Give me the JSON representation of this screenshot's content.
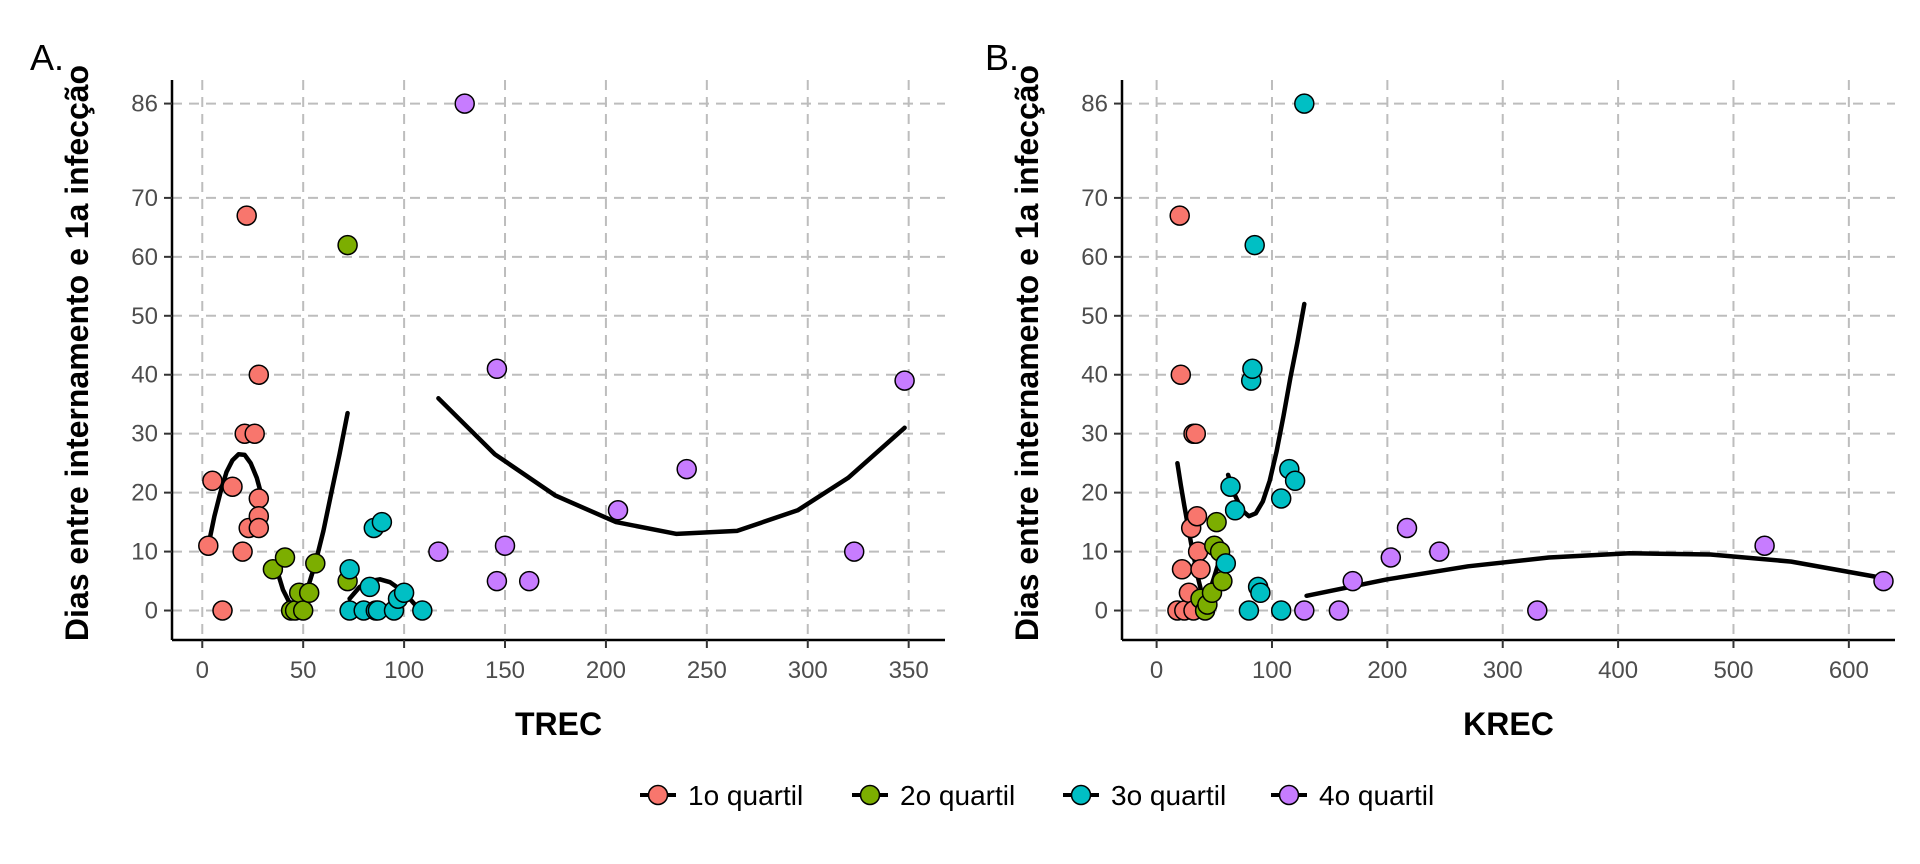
{
  "panel_labels": [
    "A.",
    "B."
  ],
  "legend": {
    "items": [
      {
        "label": "1o quartil",
        "color": "#F8766D"
      },
      {
        "label": "2o quartil",
        "color": "#7CAE00"
      },
      {
        "label": "3o quartil",
        "color": "#00BFC4"
      },
      {
        "label": "4o quartil",
        "color": "#C77CFF"
      }
    ]
  },
  "chart_data": [
    {
      "type": "scatter",
      "panel": "A.",
      "xlabel": "TREC",
      "ylabel": "Dias entre internamento e 1a infecção",
      "xlim": [
        -15,
        368
      ],
      "ylim": [
        -5,
        90
      ],
      "xticks": [
        0,
        50,
        100,
        150,
        200,
        250,
        300,
        350
      ],
      "yticks": [
        0,
        10,
        20,
        30,
        40,
        50,
        60,
        70,
        86
      ],
      "grid": true,
      "grid_style": "dashed",
      "series": [
        {
          "name": "1o quartil",
          "color": "#F8766D",
          "x": [
            3,
            5,
            10,
            15,
            20,
            21,
            22,
            23,
            26,
            28,
            28,
            28,
            28
          ],
          "y": [
            11,
            22,
            0,
            21,
            10,
            30,
            67,
            14,
            30,
            40,
            19,
            16,
            14
          ],
          "fit": {
            "x": [
              3,
              6,
              9,
              12,
              15,
              18,
              21,
              24,
              27,
              29
            ],
            "y": [
              11,
              16,
              20,
              23.5,
              25.5,
              26.5,
              26.4,
              25,
              22.5,
              20
            ]
          }
        },
        {
          "name": "2o quartil",
          "color": "#7CAE00",
          "x": [
            35,
            41,
            44,
            46,
            48,
            50,
            53,
            56,
            72,
            72
          ],
          "y": [
            7,
            9,
            0,
            0,
            3,
            0,
            3,
            8,
            62,
            5
          ],
          "fit": {
            "x": [
              36,
              40,
              44,
              48,
              52,
              56,
              60,
              64,
              68,
              72
            ],
            "y": [
              8,
              3.5,
              0.8,
              0.8,
              3.5,
              8,
              13.5,
              20,
              26.5,
              33.5
            ]
          }
        },
        {
          "name": "3o quartil",
          "color": "#00BFC4",
          "x": [
            73,
            73,
            80,
            83,
            85,
            86,
            87,
            89,
            95,
            97,
            100,
            109
          ],
          "y": [
            7,
            0,
            0,
            4,
            14,
            0,
            0,
            15,
            0,
            2,
            3,
            0
          ],
          "fit": {
            "x": [
              73,
              78,
              83,
              88,
              93,
              98,
              103,
              108
            ],
            "y": [
              2,
              4,
              5,
              5.3,
              4.8,
              3.6,
              1.9,
              0
            ]
          }
        },
        {
          "name": "4o quartil",
          "color": "#C77CFF",
          "x": [
            117,
            130,
            146,
            146,
            150,
            162,
            206,
            240,
            323,
            348
          ],
          "y": [
            10,
            86,
            41,
            5,
            11,
            5,
            17,
            24,
            10,
            39
          ],
          "fit": {
            "x": [
              117,
              145,
              175,
              205,
              235,
              265,
              295,
              320,
              348
            ],
            "y": [
              36,
              26.5,
              19.5,
              15,
              13,
              13.5,
              17,
              22.5,
              31
            ]
          }
        }
      ]
    },
    {
      "type": "scatter",
      "panel": "B.",
      "xlabel": "KREC",
      "ylabel": "Dias entre internamento e 1a infecção",
      "xlim": [
        -30,
        640
      ],
      "ylim": [
        -5,
        90
      ],
      "xticks": [
        0,
        100,
        200,
        300,
        400,
        500,
        600
      ],
      "yticks": [
        0,
        10,
        20,
        30,
        40,
        50,
        60,
        70,
        86
      ],
      "grid": true,
      "grid_style": "dashed",
      "series": [
        {
          "name": "1o quartil",
          "color": "#F8766D",
          "x": [
            18,
            20,
            21,
            22,
            24,
            28,
            30,
            32,
            32,
            34,
            35,
            36,
            38
          ],
          "y": [
            0,
            67,
            40,
            7,
            0,
            3,
            14,
            30,
            0,
            30,
            16,
            10,
            7
          ],
          "fit": {
            "x": [
              18,
              21,
              24,
              27,
              30,
              33,
              36,
              38
            ],
            "y": [
              25,
              21.3,
              17.8,
              14.5,
              11.3,
              8.4,
              5.5,
              3.8
            ]
          }
        },
        {
          "name": "2o quartil",
          "color": "#7CAE00",
          "x": [
            38,
            42,
            44,
            48,
            50,
            52,
            55,
            57
          ],
          "y": [
            2,
            0,
            1,
            3,
            11,
            15,
            10,
            5
          ],
          "fit": {
            "x": [
              40,
              44,
              48,
              52,
              56
            ],
            "y": [
              -0.5,
              2,
              4.5,
              7,
              9.5
            ]
          }
        },
        {
          "name": "3o quartil",
          "color": "#00BFC4",
          "x": [
            60,
            64,
            68,
            80,
            82,
            83,
            85,
            88,
            90,
            108,
            108,
            115,
            120,
            128
          ],
          "y": [
            8,
            21,
            17,
            0,
            39,
            41,
            62,
            4,
            3,
            0,
            19,
            24,
            22,
            86
          ],
          "fit": {
            "x": [
              62,
              68,
              74,
              80,
              86,
              92,
              98,
              104,
              110,
              116,
              122,
              128
            ],
            "y": [
              23,
              19.5,
              17,
              16,
              16.5,
              18.5,
              22,
              27,
              33,
              39.5,
              45.5,
              52
            ]
          }
        },
        {
          "name": "4o quartil",
          "color": "#C77CFF",
          "x": [
            128,
            158,
            170,
            203,
            217,
            245,
            330,
            527,
            630
          ],
          "y": [
            0,
            0,
            5,
            9,
            14,
            10,
            0,
            11,
            5
          ],
          "fit": {
            "x": [
              130,
              200,
              270,
              340,
              410,
              480,
              550,
              630
            ],
            "y": [
              2.5,
              5.3,
              7.5,
              9,
              9.7,
              9.5,
              8.3,
              5.5
            ]
          }
        }
      ]
    }
  ]
}
